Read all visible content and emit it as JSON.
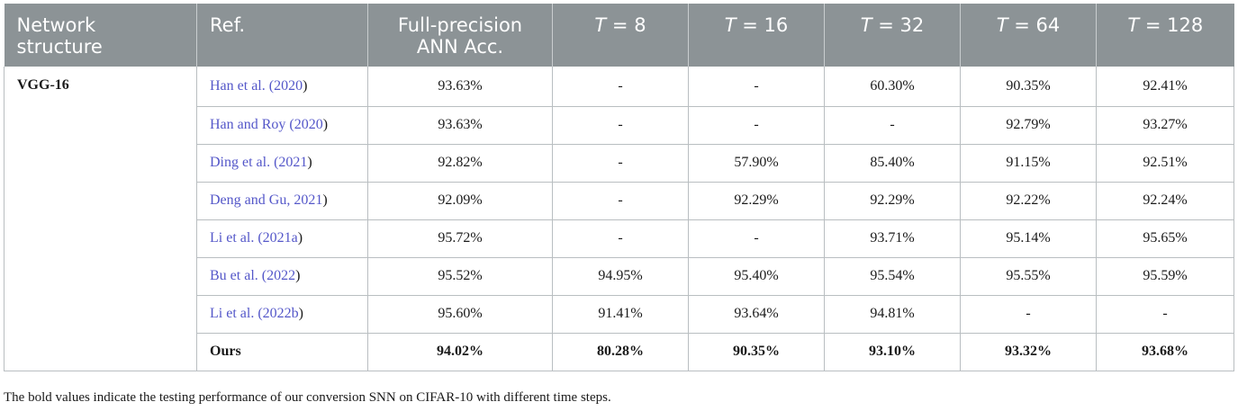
{
  "headers": {
    "structure_line1": "Network",
    "structure_line2": "structure",
    "ref": "Ref.",
    "acc_line1": "Full-precision",
    "acc_line2": "ANN Acc.",
    "t_var": "T",
    "t_eq": " = ",
    "t_values": [
      "8",
      "16",
      "32",
      "64",
      "128"
    ]
  },
  "network_structure": "VGG-16",
  "rows": [
    {
      "ref_pre": "Han et al. (",
      "ref_year": "2020",
      "ref_post": ")",
      "acc": "93.63%",
      "t8": "-",
      "t16": "-",
      "t32": "60.30%",
      "t64": "90.35%",
      "t128": "92.41%"
    },
    {
      "ref_pre": "Han and Roy (",
      "ref_year": "2020",
      "ref_post": ")",
      "acc": "93.63%",
      "t8": "-",
      "t16": "-",
      "t32": "-",
      "t64": "92.79%",
      "t128": "93.27%"
    },
    {
      "ref_pre": "Ding et al. (",
      "ref_year": "2021",
      "ref_post": ")",
      "acc": "92.82%",
      "t8": "-",
      "t16": "57.90%",
      "t32": "85.40%",
      "t64": "91.15%",
      "t128": "92.51%"
    },
    {
      "ref_pre": "Deng and Gu, ",
      "ref_year": "2021",
      "ref_post": ")",
      "acc": "92.09%",
      "t8": "-",
      "t16": "92.29%",
      "t32": "92.29%",
      "t64": "92.22%",
      "t128": "92.24%"
    },
    {
      "ref_pre": "Li et al. (",
      "ref_year": "2021a",
      "ref_post": ")",
      "acc": "95.72%",
      "t8": "-",
      "t16": "-",
      "t32": "93.71%",
      "t64": "95.14%",
      "t128": "95.65%"
    },
    {
      "ref_pre": "Bu et al. (",
      "ref_year": "2022",
      "ref_post": ")",
      "acc": "95.52%",
      "t8": "94.95%",
      "t16": "95.40%",
      "t32": "95.54%",
      "t64": "95.55%",
      "t128": "95.59%"
    },
    {
      "ref_pre": "Li et al. (",
      "ref_year": "2022b",
      "ref_post": ")",
      "acc": "95.60%",
      "t8": "91.41%",
      "t16": "93.64%",
      "t32": "94.81%",
      "t64": "-",
      "t128": "-"
    }
  ],
  "ours": {
    "ref": "Ours",
    "acc": "94.02%",
    "t8": "80.28%",
    "t16": "90.35%",
    "t32": "93.10%",
    "t64": "93.32%",
    "t128": "93.68%"
  },
  "footnote": "The bold values indicate the testing performance of our conversion SNN on CIFAR-10 with different time steps.",
  "colors": {
    "header_bg": "#8c9396",
    "link": "#5457c9",
    "grid": "#b9bec1"
  }
}
